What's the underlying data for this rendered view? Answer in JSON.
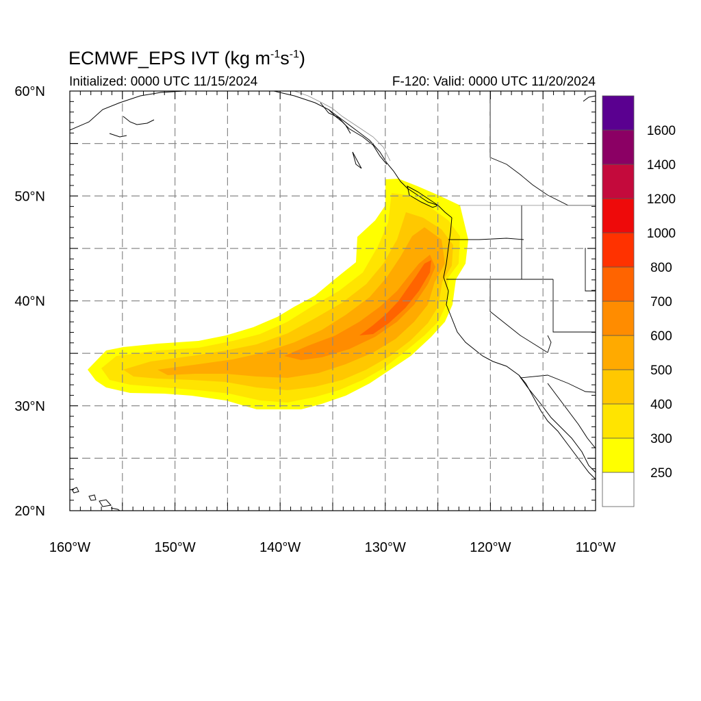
{
  "header": {
    "title_main": "ECMWF_EPS IVT (kg m",
    "title_sup1": "-1",
    "title_mid": "s",
    "title_sup2": "-1",
    "title_end": ")",
    "initialized": "Initialized: 0000 UTC 11/15/2024",
    "valid": "F-120: Valid: 0000 UTC 11/20/2024"
  },
  "map": {
    "lon_range": [
      -160,
      -110
    ],
    "lat_range": [
      20,
      60
    ],
    "lat_labels": [
      "20°N",
      "30°N",
      "40°N",
      "50°N",
      "60°N"
    ],
    "lon_labels": [
      "160°W",
      "150°W",
      "140°W",
      "130°W",
      "120°W",
      "110°W"
    ],
    "grid": "dashed every 5°",
    "land_color": "#ffffff",
    "coastline_color": "#000000"
  },
  "colorbar": {
    "labels": [
      "250",
      "300",
      "400",
      "500",
      "600",
      "700",
      "800",
      "1000",
      "1200",
      "1400",
      "1600"
    ],
    "colors": [
      "#ffffff",
      "#ffff00",
      "#ffe400",
      "#ffc800",
      "#ffaa00",
      "#ff8c00",
      "#ff6400",
      "#ff3200",
      "#ee0a0a",
      "#c40a3c",
      "#8b0064",
      "#5a0090"
    ]
  },
  "ivt_river": {
    "description_levels": [
      250,
      300,
      400,
      500,
      600,
      700
    ],
    "spine": [
      [
        -157,
        33.5
      ],
      [
        -150,
        33.3
      ],
      [
        -145,
        33.2
      ],
      [
        -140,
        33.5
      ],
      [
        -136,
        35
      ],
      [
        -132,
        37
      ],
      [
        -129,
        39
      ],
      [
        -127,
        42
      ],
      [
        -125.5,
        45
      ],
      [
        -124.5,
        47.5
      ],
      [
        -124,
        50
      ]
    ]
  }
}
